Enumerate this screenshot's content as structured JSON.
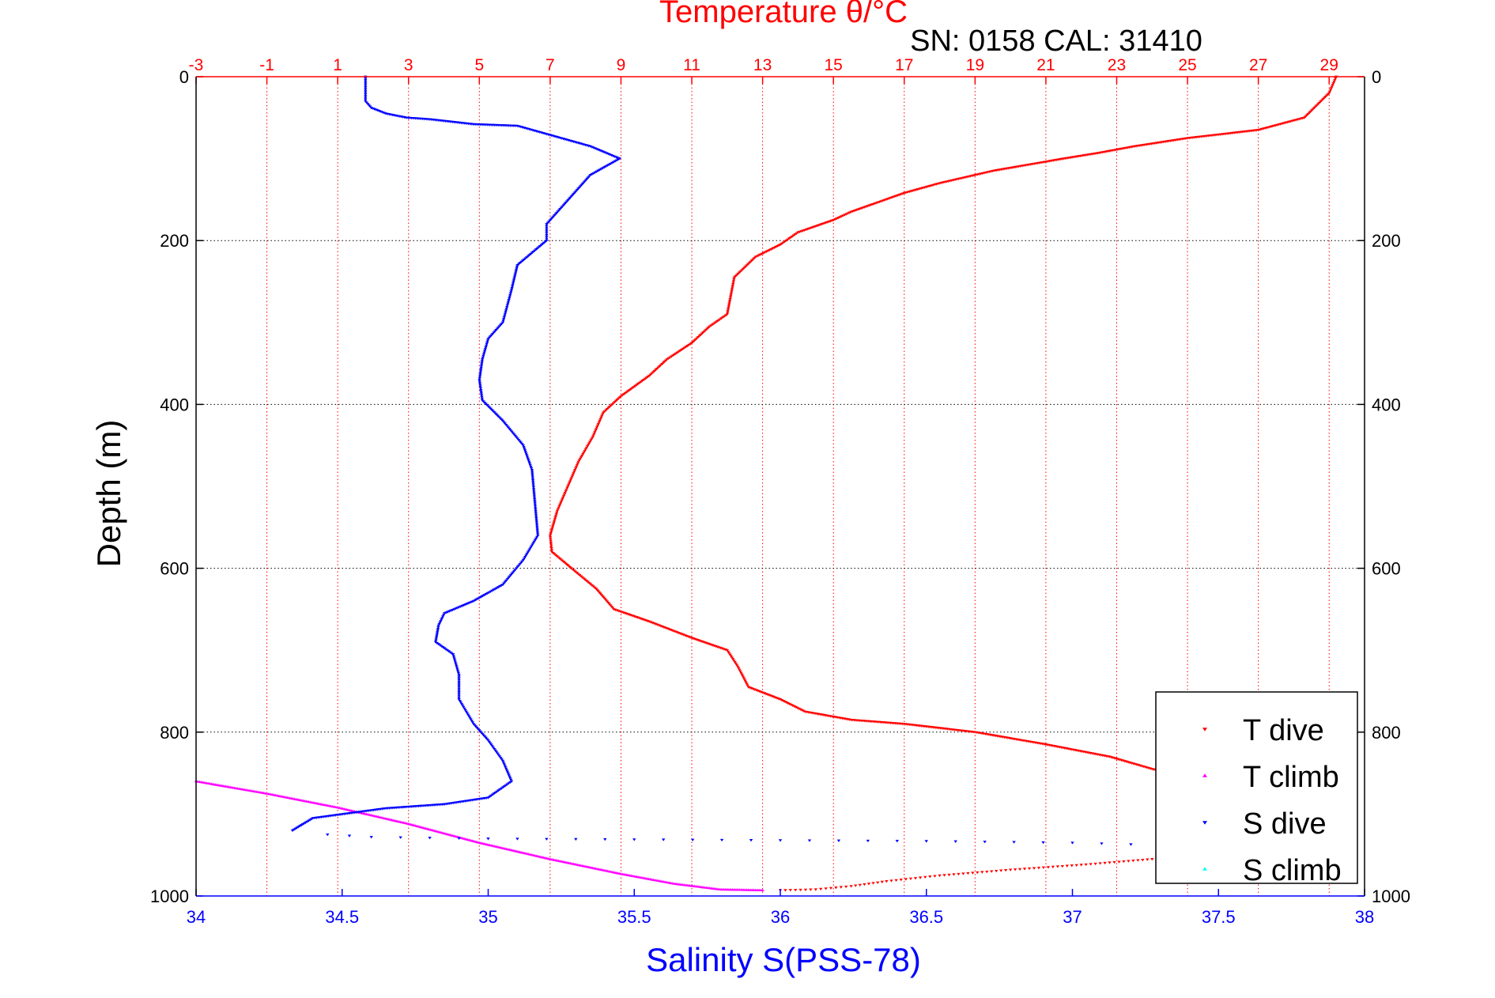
{
  "chart_data": {
    "type": "scatter",
    "title": "Temperature θ/°C",
    "annotation": "SN: 0158  CAL: 31410",
    "ylabel": "Depth (m)",
    "xlabel": "Salinity S(PSS-78)",
    "top_axis_label": "Temperature θ/°C",
    "bottom_axis": {
      "label": "Salinity S(PSS-78)",
      "min": 34,
      "max": 38,
      "ticks": [
        "34",
        "34.5",
        "35",
        "35.5",
        "36",
        "36.5",
        "37",
        "37.5",
        "38"
      ],
      "color": "#0000ff"
    },
    "top_axis": {
      "label": "Temperature θ/°C",
      "min": -3,
      "max": 30,
      "ticks": [
        "-3",
        "-1",
        "1",
        "3",
        "5",
        "7",
        "9",
        "11",
        "13",
        "15",
        "17",
        "19",
        "21",
        "23",
        "25",
        "27",
        "29"
      ],
      "color": "#ff0000"
    },
    "y_axis": {
      "label": "Depth (m)",
      "min": 0,
      "max": 1000,
      "reversed": true,
      "ticks": [
        "0",
        "200",
        "400",
        "600",
        "800",
        "1000"
      ]
    },
    "grid": true,
    "legend_position": "bottom-right",
    "legend": [
      {
        "name": "T dive",
        "color": "#ff0000",
        "marker": "triangle-down"
      },
      {
        "name": "T climb",
        "color": "#ff00ff",
        "marker": "triangle-up"
      },
      {
        "name": "S dive",
        "color": "#0000ff",
        "marker": "triangle-down"
      },
      {
        "name": "S climb",
        "color": "#00ffff",
        "marker": "triangle-up"
      }
    ],
    "series": [
      {
        "name": "T dive",
        "axis": "temperature",
        "color": "#ff0000",
        "points": [
          [
            29.2,
            0
          ],
          [
            29.0,
            20
          ],
          [
            28.3,
            50
          ],
          [
            27.0,
            65
          ],
          [
            25.0,
            75
          ],
          [
            23.5,
            85
          ],
          [
            22.5,
            93
          ],
          [
            21.5,
            100
          ],
          [
            19.5,
            115
          ],
          [
            18.0,
            130
          ],
          [
            17.0,
            142
          ],
          [
            15.5,
            165
          ],
          [
            15.0,
            175
          ],
          [
            14.0,
            190
          ],
          [
            13.5,
            205
          ],
          [
            12.8,
            220
          ],
          [
            12.2,
            245
          ],
          [
            12.0,
            290
          ],
          [
            11.5,
            305
          ],
          [
            11.0,
            325
          ],
          [
            10.3,
            345
          ],
          [
            9.8,
            365
          ],
          [
            9.0,
            390
          ],
          [
            8.5,
            410
          ],
          [
            8.2,
            440
          ],
          [
            7.8,
            470
          ],
          [
            7.5,
            500
          ],
          [
            7.2,
            530
          ],
          [
            7.0,
            560
          ],
          [
            7.05,
            580
          ],
          [
            7.6,
            600
          ],
          [
            8.3,
            625
          ],
          [
            8.8,
            650
          ],
          [
            9.8,
            665
          ],
          [
            11.0,
            685
          ],
          [
            12.0,
            700
          ],
          [
            12.3,
            720
          ],
          [
            12.6,
            745
          ],
          [
            13.5,
            760
          ],
          [
            14.2,
            775
          ],
          [
            15.5,
            785
          ],
          [
            17.0,
            790
          ],
          [
            19.0,
            800
          ],
          [
            21.0,
            815
          ],
          [
            22.8,
            830
          ],
          [
            24.0,
            845
          ],
          [
            25.0,
            855
          ],
          [
            25.5,
            860
          ]
        ]
      },
      {
        "name": "T dive",
        "axis": "temperature",
        "color": "#ff0000",
        "points": [
          [
            26.0,
            950
          ],
          [
            24.0,
            955
          ],
          [
            22.0,
            962
          ],
          [
            20.0,
            968
          ],
          [
            18.0,
            975
          ],
          [
            16.5,
            982
          ],
          [
            15.5,
            988
          ],
          [
            14.5,
            992
          ],
          [
            13.5,
            993
          ]
        ]
      },
      {
        "name": "T climb",
        "axis": "temperature",
        "color": "#ff00ff",
        "points": [
          [
            -3.0,
            860
          ],
          [
            -1.0,
            875
          ],
          [
            1.0,
            892
          ],
          [
            3.0,
            912
          ],
          [
            5.0,
            935
          ],
          [
            7.0,
            955
          ],
          [
            9.0,
            973
          ],
          [
            10.5,
            985
          ],
          [
            11.8,
            992
          ],
          [
            13.0,
            993
          ]
        ]
      },
      {
        "name": "S dive",
        "axis": "salinity",
        "color": "#0000ff",
        "points": [
          [
            34.58,
            0
          ],
          [
            34.58,
            30
          ],
          [
            34.6,
            38
          ],
          [
            34.65,
            45
          ],
          [
            34.72,
            50
          ],
          [
            34.8,
            52
          ],
          [
            34.95,
            58
          ],
          [
            35.1,
            60
          ],
          [
            35.2,
            70
          ],
          [
            35.35,
            85
          ],
          [
            35.45,
            100
          ],
          [
            35.35,
            120
          ],
          [
            35.3,
            140
          ],
          [
            35.25,
            160
          ],
          [
            35.2,
            180
          ],
          [
            35.2,
            200
          ],
          [
            35.15,
            215
          ],
          [
            35.1,
            230
          ],
          [
            35.08,
            260
          ],
          [
            35.05,
            300
          ],
          [
            35.0,
            320
          ],
          [
            34.98,
            345
          ],
          [
            34.97,
            370
          ],
          [
            34.98,
            395
          ],
          [
            35.05,
            420
          ],
          [
            35.12,
            450
          ],
          [
            35.15,
            480
          ],
          [
            35.16,
            520
          ],
          [
            35.17,
            560
          ],
          [
            35.12,
            590
          ],
          [
            35.05,
            620
          ],
          [
            34.95,
            640
          ],
          [
            34.85,
            655
          ],
          [
            34.83,
            670
          ],
          [
            34.82,
            690
          ],
          [
            34.88,
            705
          ],
          [
            34.9,
            730
          ],
          [
            34.9,
            760
          ],
          [
            34.95,
            790
          ],
          [
            35.0,
            810
          ],
          [
            35.05,
            835
          ],
          [
            35.08,
            860
          ],
          [
            35.0,
            880
          ],
          [
            34.85,
            888
          ],
          [
            34.65,
            893
          ],
          [
            34.4,
            905
          ],
          [
            34.33,
            920
          ]
        ]
      },
      {
        "name": "S dive",
        "axis": "salinity",
        "color": "#0000ff",
        "points": [
          [
            34.45,
            925
          ],
          [
            34.6,
            928
          ],
          [
            35.0,
            930
          ],
          [
            35.5,
            931
          ],
          [
            36.0,
            932
          ],
          [
            36.5,
            933
          ],
          [
            37.0,
            935
          ],
          [
            37.2,
            937
          ]
        ]
      }
    ]
  }
}
